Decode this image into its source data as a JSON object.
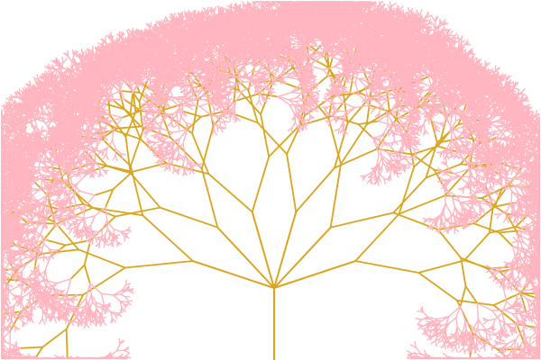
{
  "scene": {
    "background_color": "#ffffff",
    "branch_color": "#DAA520",
    "blossom_color": "#FFB6C1",
    "subject": "fractal tree"
  }
}
